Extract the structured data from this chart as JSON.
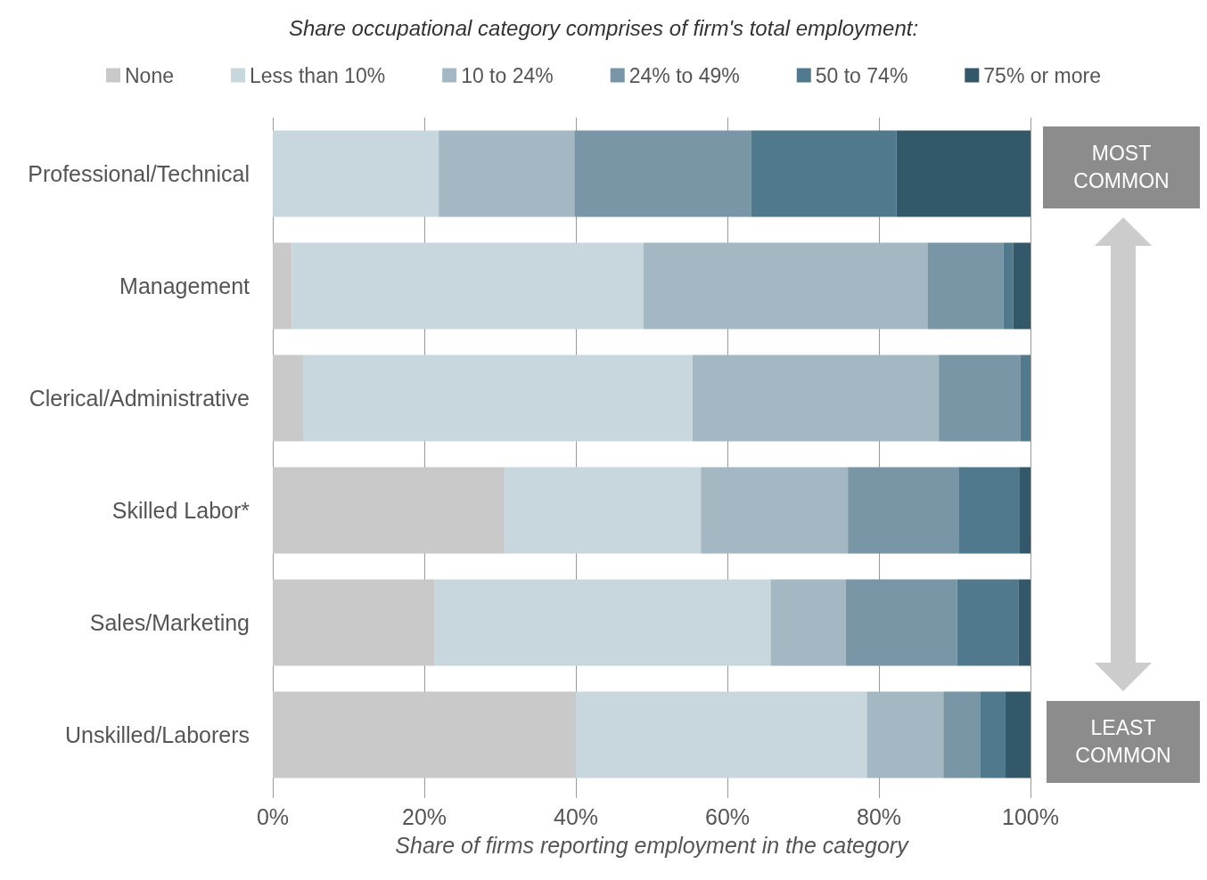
{
  "chart_data": {
    "type": "bar",
    "orientation": "horizontal",
    "stacked": true,
    "title": "Share occupational category comprises of firm's total employment:",
    "xlabel": "Share of firms reporting employment in the category",
    "categories": [
      "Professional/Technical",
      "Management",
      "Clerical/Administrative",
      "Skilled Labor*",
      "Sales/Marketing",
      "Unskilled/Laborers"
    ],
    "series": [
      {
        "name": "None",
        "color": "#c9c9c9",
        "values": [
          0,
          2.5,
          4.0,
          30.6,
          21.3,
          40.0
        ]
      },
      {
        "name": "Less than 10%",
        "color": "#c8d7de",
        "values": [
          21.9,
          46.4,
          51.4,
          25.9,
          44.4,
          38.4
        ]
      },
      {
        "name": "10 to 24%",
        "color": "#a3b8c2",
        "values": [
          17.9,
          37.5,
          32.5,
          19.4,
          9.9,
          10.1
        ]
      },
      {
        "name": "24% to 49%",
        "color": "#7896a6",
        "values": [
          23.3,
          10.0,
          10.8,
          14.6,
          14.7,
          4.9
        ]
      },
      {
        "name": "50 to 74%",
        "color": "#51798d",
        "values": [
          19.2,
          1.3,
          1.3,
          8.0,
          8.1,
          3.3
        ]
      },
      {
        "name": "75% or more",
        "color": "#335869",
        "values": [
          17.7,
          2.3,
          0,
          1.5,
          1.6,
          3.3
        ]
      }
    ],
    "xlim": [
      0,
      100
    ],
    "xticks": [
      {
        "value": 0,
        "label": "0%"
      },
      {
        "value": 20,
        "label": "20%"
      },
      {
        "value": 40,
        "label": "40%"
      },
      {
        "value": 60,
        "label": "60%"
      },
      {
        "value": 80,
        "label": "80%"
      },
      {
        "value": 100,
        "label": "100%"
      }
    ],
    "grid": "x",
    "legend": "top",
    "annotations": [
      "MOST COMMON",
      "LEAST COMMON"
    ]
  }
}
